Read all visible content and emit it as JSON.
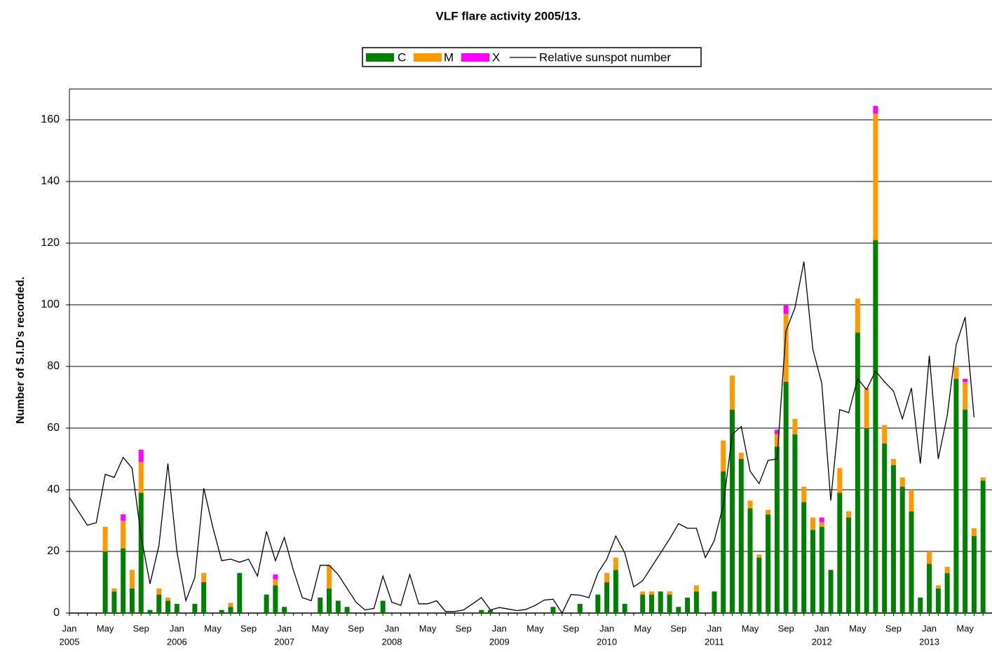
{
  "chart_data": {
    "type": "bar",
    "stacked": true,
    "title": "VLF flare activity 2005/13.",
    "y_label": "Number of S.I.D's recorded.",
    "categories": [
      "Jan",
      null,
      null,
      null,
      "May",
      null,
      null,
      null,
      "Sep",
      null,
      null,
      null,
      "Jan",
      null,
      null,
      null,
      "May",
      null,
      null,
      null,
      "Sep",
      null,
      null,
      null,
      "Jan",
      null,
      null,
      null,
      "May",
      null,
      null,
      null,
      "Sep",
      null,
      null,
      null,
      "Jan",
      null,
      null,
      null,
      "May",
      null,
      null,
      null,
      "Sep",
      null,
      null,
      null,
      "Jan",
      null,
      null,
      null,
      "May",
      null,
      null,
      null,
      "Sep",
      null,
      null,
      null,
      "Jan",
      null,
      null,
      null,
      "May",
      null,
      null,
      null,
      "Sep",
      null,
      null,
      null,
      "Jan",
      null,
      null,
      null,
      "May",
      null,
      null,
      null,
      "Sep",
      null,
      null,
      null,
      "Jan",
      null,
      null,
      null,
      "May",
      null,
      null,
      null,
      "Sep",
      null,
      null,
      null,
      "Jan",
      null,
      null,
      null,
      "May",
      null,
      null
    ],
    "years": [
      "2005",
      null,
      null,
      null,
      null,
      null,
      null,
      null,
      null,
      null,
      null,
      null,
      "2006",
      null,
      null,
      null,
      null,
      null,
      null,
      null,
      null,
      null,
      null,
      null,
      "2007",
      null,
      null,
      null,
      null,
      null,
      null,
      null,
      null,
      null,
      null,
      null,
      "2008",
      null,
      null,
      null,
      null,
      null,
      null,
      null,
      null,
      null,
      null,
      null,
      "2009",
      null,
      null,
      null,
      null,
      null,
      null,
      null,
      null,
      null,
      null,
      null,
      "2010",
      null,
      null,
      null,
      null,
      null,
      null,
      null,
      null,
      null,
      null,
      null,
      "2011",
      null,
      null,
      null,
      null,
      null,
      null,
      null,
      null,
      null,
      null,
      null,
      "2012",
      null,
      null,
      null,
      null,
      null,
      null,
      null,
      null,
      null,
      null,
      null,
      "2013",
      null,
      null,
      null,
      null,
      null,
      null
    ],
    "series": [
      {
        "name": "C",
        "color": "#008000",
        "values": [
          0,
          0,
          0,
          0,
          20,
          7,
          21,
          8,
          39,
          1,
          6,
          4,
          3,
          0,
          3,
          10,
          0,
          1,
          2,
          13,
          0,
          0,
          6,
          9,
          2,
          0,
          0,
          0,
          5,
          8,
          4,
          2,
          0,
          0,
          0,
          4,
          0,
          0,
          0,
          0,
          0,
          0,
          0,
          0,
          0,
          0,
          1,
          1,
          0,
          0,
          0,
          0,
          0,
          0,
          2,
          0,
          0,
          3,
          0,
          6,
          10,
          14,
          3,
          0,
          6,
          6,
          7,
          6,
          2,
          5,
          7,
          0,
          7,
          46,
          66,
          50,
          34,
          18,
          32,
          54,
          75,
          58,
          36,
          27,
          28,
          14,
          39,
          31,
          91,
          60,
          121,
          55,
          48,
          41,
          33,
          5,
          16,
          8,
          13,
          76,
          66,
          25,
          43
        ]
      },
      {
        "name": "M",
        "color": "#ff9900",
        "values": [
          0,
          0,
          0,
          0,
          8,
          1,
          9,
          6,
          10,
          0,
          2,
          1,
          0,
          0,
          0,
          3,
          0,
          0,
          1.3,
          0,
          0,
          0,
          0,
          2,
          0,
          0,
          0,
          0,
          0,
          7.5,
          0,
          0,
          0,
          0,
          0,
          0,
          0,
          0,
          0,
          0,
          0,
          0,
          0,
          0,
          0,
          0,
          0,
          0,
          0,
          0,
          0,
          0,
          0,
          0,
          0,
          0,
          0,
          0,
          0,
          0,
          3,
          4,
          0,
          0,
          1,
          1,
          0,
          1,
          0,
          0,
          2,
          0,
          0,
          10,
          11,
          2,
          2.5,
          1,
          1.5,
          4,
          22,
          5,
          5,
          4,
          1.5,
          0,
          8,
          2,
          11,
          13,
          41,
          6,
          2,
          3,
          7,
          0,
          4,
          1,
          2,
          4,
          9,
          2.5,
          1
        ]
      },
      {
        "name": "X",
        "color": "#ff00ff",
        "values": [
          0,
          0,
          0,
          0,
          0,
          0,
          2,
          0,
          4,
          0,
          0,
          0,
          0,
          0,
          0,
          0,
          0,
          0,
          0,
          0,
          0,
          0,
          0,
          1.5,
          0,
          0,
          0,
          0,
          0,
          0,
          0,
          0,
          0,
          0,
          0,
          0,
          0,
          0,
          0,
          0,
          0,
          0,
          0,
          0,
          0,
          0,
          0,
          0,
          0,
          0,
          0,
          0,
          0,
          0,
          0,
          0,
          0,
          0,
          0,
          0,
          0,
          0,
          0,
          0,
          0,
          0,
          0,
          0,
          0,
          0,
          0,
          0,
          0,
          0,
          0,
          0,
          0,
          0,
          0,
          1.5,
          3,
          0,
          0,
          0,
          1.5,
          0,
          0,
          0,
          0,
          0,
          2.5,
          0,
          0,
          0,
          0,
          0,
          0,
          0,
          0,
          0,
          1,
          0,
          0
        ]
      },
      {
        "name": "Relative sunspot number",
        "type": "line",
        "color": "#000000",
        "values": [
          37.5,
          33,
          28.5,
          29.3,
          45,
          44,
          50.5,
          47,
          25,
          9.5,
          22,
          48.5,
          20,
          4,
          11.5,
          40.5,
          28,
          17,
          17.5,
          16.5,
          17.5,
          12,
          26.5,
          17,
          24.5,
          14,
          5,
          4,
          15.5,
          15.5,
          12.5,
          8,
          3.5,
          1,
          1.5,
          12,
          3.5,
          2.5,
          12.5,
          3,
          3,
          4,
          0.5,
          0.5,
          1,
          3,
          5,
          1,
          1.8,
          1.3,
          0.8,
          1.2,
          2.5,
          4.2,
          4.5,
          0,
          6,
          5.8,
          5,
          13,
          17.5,
          25,
          19.5,
          8.5,
          10.5,
          15,
          19.5,
          24,
          29,
          27.5,
          27.5,
          18,
          23.5,
          35,
          58,
          60.5,
          46,
          42,
          49.5,
          50,
          91.5,
          99,
          114,
          85.5,
          74.5,
          36.5,
          66,
          65,
          76,
          72.5,
          78.5,
          75,
          72,
          63,
          73,
          48.5,
          83.5,
          50,
          64,
          87,
          96,
          63.5,
          null
        ]
      }
    ],
    "ylim": [
      0,
      170
    ],
    "yticks": [
      0,
      20,
      40,
      60,
      80,
      100,
      120,
      140,
      160
    ],
    "grid": true,
    "legend": "top"
  }
}
